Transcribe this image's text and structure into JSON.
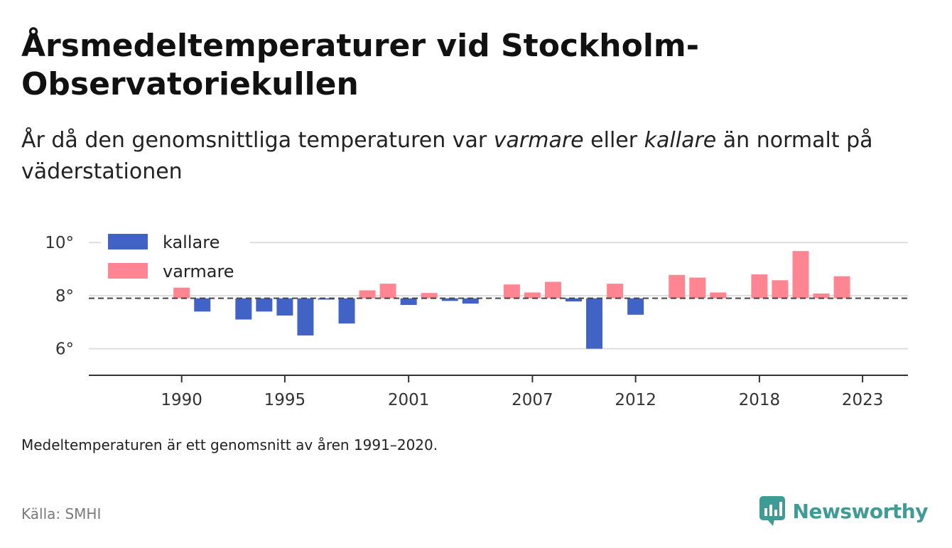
{
  "title": "Årsmedeltemperaturer vid Stockholm-Observatoriekullen",
  "subtitle": {
    "part1": "År då den genomsnittliga temperaturen var ",
    "em1": "varmare",
    "part2": " eller ",
    "em2": "kallare",
    "part3": " än normalt på väderstationen"
  },
  "note": "Medeltemperaturen är ett genomsnitt av åren 1991–2020.",
  "source": "Källa: SMHI",
  "brand": {
    "name": "Newsworthy",
    "icon": "newsworthy-logo-icon"
  },
  "colors": {
    "kallare": "#4263c6",
    "varmare": "#ff8592",
    "baseline": "#444444",
    "grid": "#dddddd",
    "axis": "#333333"
  },
  "chart_data": {
    "type": "bar",
    "baseline": 7.9,
    "ylim": [
      5.0,
      10.3
    ],
    "yticks": [
      6,
      8,
      10
    ],
    "ytick_labels": [
      "6°",
      "8°",
      "10°"
    ],
    "xticks": [
      1990,
      1995,
      2001,
      2007,
      2012,
      2018,
      2023
    ],
    "xtick_labels": [
      "1990",
      "1995",
      "2001",
      "2007",
      "2012",
      "2018",
      "2023"
    ],
    "xlim": [
      1985.5,
      2025.2
    ],
    "legend": [
      "kallare",
      "varmare"
    ],
    "legend_placement": "top-left",
    "grid": true,
    "years": [
      1990,
      1991,
      1993,
      1994,
      1995,
      1996,
      1997,
      1998,
      1999,
      2000,
      2001,
      2002,
      2003,
      2004,
      2006,
      2007,
      2008,
      2009,
      2010,
      2011,
      2012,
      2014,
      2015,
      2016,
      2018,
      2019,
      2020,
      2021,
      2022
    ],
    "values": [
      8.3,
      7.4,
      7.1,
      7.4,
      7.25,
      6.5,
      7.85,
      6.95,
      8.2,
      8.45,
      7.65,
      8.1,
      7.8,
      7.7,
      8.42,
      8.12,
      8.52,
      7.78,
      6.0,
      8.45,
      7.28,
      8.78,
      8.68,
      8.12,
      8.8,
      8.58,
      9.68,
      8.08,
      8.73
    ]
  }
}
